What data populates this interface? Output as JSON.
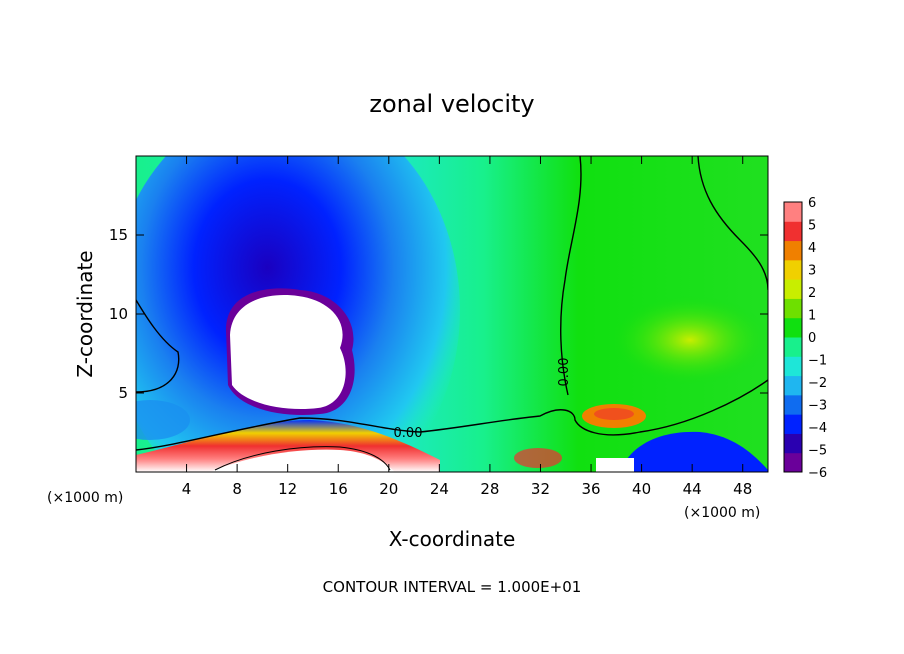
{
  "chart_data": {
    "type": "heatmap",
    "title": "zonal velocity",
    "xlabel": "X-coordinate",
    "ylabel": "Z-coordinate",
    "x_unit_left": "(×1000 m)",
    "x_unit_right": "(×1000 m)",
    "xlim": [
      0,
      50
    ],
    "ylim": [
      0,
      20
    ],
    "x_ticks": [
      4,
      8,
      12,
      16,
      20,
      24,
      28,
      32,
      36,
      40,
      44,
      48
    ],
    "y_ticks": [
      5,
      10,
      15
    ],
    "colorbar": {
      "levels": [
        6,
        5,
        4,
        3,
        2,
        1,
        0,
        -1,
        -2,
        -3,
        -4,
        -5,
        -6
      ],
      "colors": [
        "#6a009a",
        "#2a00b0",
        "#0022ff",
        "#0f6cf0",
        "#1fb6f0",
        "#1ee6d8",
        "#18f08c",
        "#10e010",
        "#6ee000",
        "#c8ee00",
        "#f0d000",
        "#f08000",
        "#f03030",
        "#ff8080"
      ]
    },
    "contour_label": "0.00",
    "contour_label_vertical": "0.00",
    "footer": "CONTOUR INTERVAL = 1.000E+01",
    "field_sketch": [
      {
        "region": "background",
        "x": [
          0,
          50
        ],
        "z": [
          0,
          20
        ],
        "value": 0
      },
      {
        "region": "upper-left jet",
        "x": [
          2,
          22
        ],
        "z": [
          2,
          20
        ],
        "value": -4
      },
      {
        "region": "core (white, below -6)",
        "x": [
          7,
          18
        ],
        "z": [
          4.5,
          11.5
        ],
        "value": -7
      },
      {
        "region": "surface band",
        "x": [
          0,
          25
        ],
        "z": [
          0,
          3
        ],
        "value": 4
      },
      {
        "region": "warm patch",
        "x": [
          35,
          40
        ],
        "z": [
          3,
          4.5
        ],
        "value": 3
      },
      {
        "region": "right green area",
        "x": [
          33,
          50
        ],
        "z": [
          0,
          20
        ],
        "value": 0.5
      }
    ]
  }
}
